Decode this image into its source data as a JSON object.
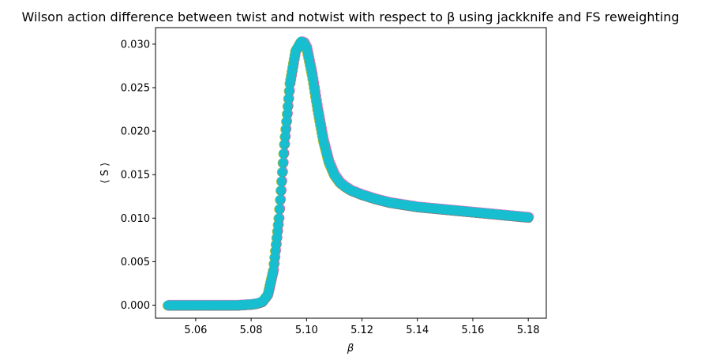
{
  "chart_data": {
    "type": "scatter",
    "title": "Wilson action difference between twist and notwist with respect to β using jackknife and FS reweighting",
    "xlabel": "β",
    "ylabel": "⟨ S ⟩",
    "xlim": [
      5.0455,
      5.1865
    ],
    "ylim": [
      -0.0015,
      0.0319
    ],
    "xticks": [
      "5.06",
      "5.08",
      "5.10",
      "5.12",
      "5.14",
      "5.16",
      "5.18"
    ],
    "yticks": [
      "0.000",
      "0.005",
      "0.010",
      "0.015",
      "0.020",
      "0.025",
      "0.030"
    ],
    "grid": false,
    "legend": "none",
    "marker_color": "#17becf",
    "under_colors": [
      "#e377c2",
      "#bcbd22",
      "#7f7f7f"
    ],
    "x_range": [
      5.05,
      5.18
    ],
    "series": [
      {
        "x": [
          5.05,
          5.055,
          5.06,
          5.065,
          5.07,
          5.075,
          5.08,
          5.082,
          5.084,
          5.086,
          5.088,
          5.09,
          5.092,
          5.094,
          5.096,
          5.098,
          5.099,
          5.1,
          5.102,
          5.104,
          5.106,
          5.108,
          5.11,
          5.112,
          5.114,
          5.116,
          5.12,
          5.125,
          5.13,
          5.14,
          5.15,
          5.16,
          5.17,
          5.18
        ],
        "values": [
          0.0,
          0.0,
          0.0,
          0.0,
          0.0,
          0.0,
          0.0001,
          0.0002,
          0.0004,
          0.0012,
          0.004,
          0.01,
          0.0185,
          0.0255,
          0.0292,
          0.0303,
          0.0302,
          0.0296,
          0.0265,
          0.0225,
          0.019,
          0.0165,
          0.015,
          0.0141,
          0.0136,
          0.0132,
          0.0127,
          0.0122,
          0.0118,
          0.0113,
          0.011,
          0.0107,
          0.0104,
          0.0101
        ]
      }
    ]
  }
}
